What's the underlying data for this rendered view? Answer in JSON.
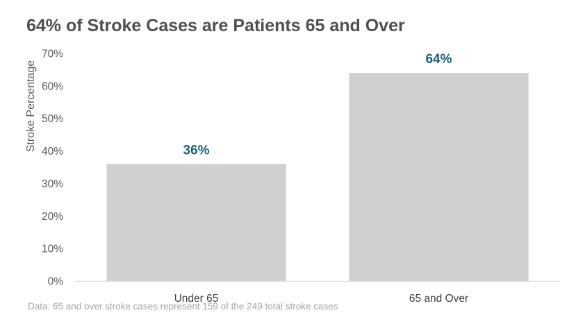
{
  "chart_data": {
    "type": "bar",
    "title": "64% of Stroke Cases are Patients 65 and Over",
    "ylabel": "Stroke Percentage",
    "xlabel": "",
    "categories": [
      "Under 65",
      "65 and Over"
    ],
    "values": [
      36,
      64
    ],
    "data_labels": [
      "36%",
      "64%"
    ],
    "ylim": [
      0,
      70
    ],
    "yticks": [
      0,
      10,
      20,
      30,
      40,
      50,
      60,
      70
    ],
    "ytick_labels": [
      "0%",
      "10%",
      "20%",
      "30%",
      "40%",
      "50%",
      "60%",
      "70%"
    ],
    "grid": false,
    "legend": "none",
    "bar_color": "#d0d0d0",
    "label_color": "#1f5f7a",
    "note": "Data: 65 and over stroke cases represent 159 of the 249 total stroke cases"
  }
}
